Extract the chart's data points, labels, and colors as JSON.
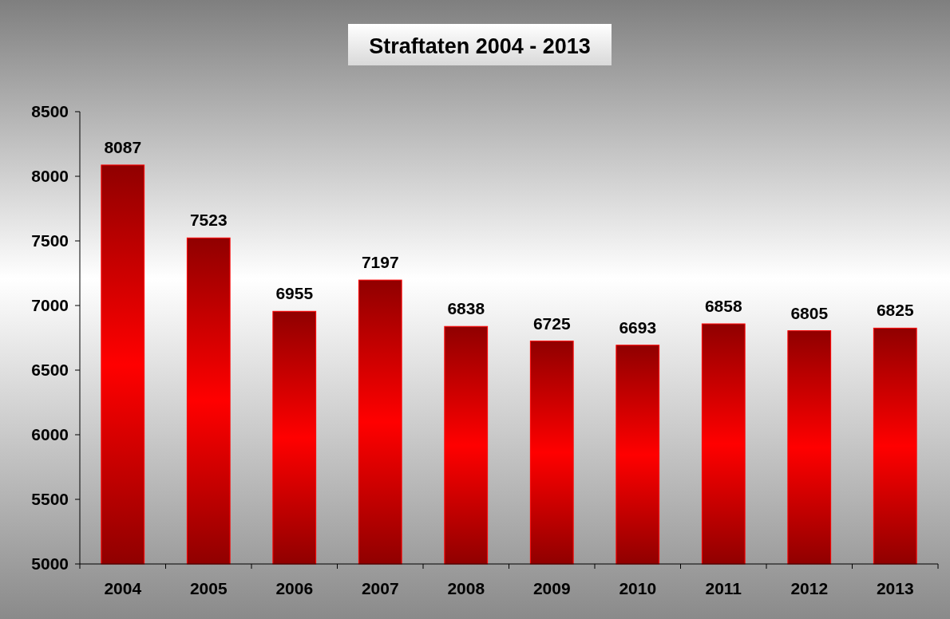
{
  "chart_data": {
    "type": "bar",
    "title": "Straftaten 2004 - 2013",
    "categories": [
      "2004",
      "2005",
      "2006",
      "2007",
      "2008",
      "2009",
      "2010",
      "2011",
      "2012",
      "2013"
    ],
    "values": [
      8087,
      7523,
      6955,
      7197,
      6838,
      6725,
      6693,
      6858,
      6805,
      6825
    ],
    "color": "#ff0000",
    "ylim": [
      5000,
      8500
    ],
    "yticks": [
      5000,
      5500,
      6000,
      6500,
      7000,
      7500,
      8000,
      8500
    ],
    "data_labels": true,
    "grid": false
  }
}
